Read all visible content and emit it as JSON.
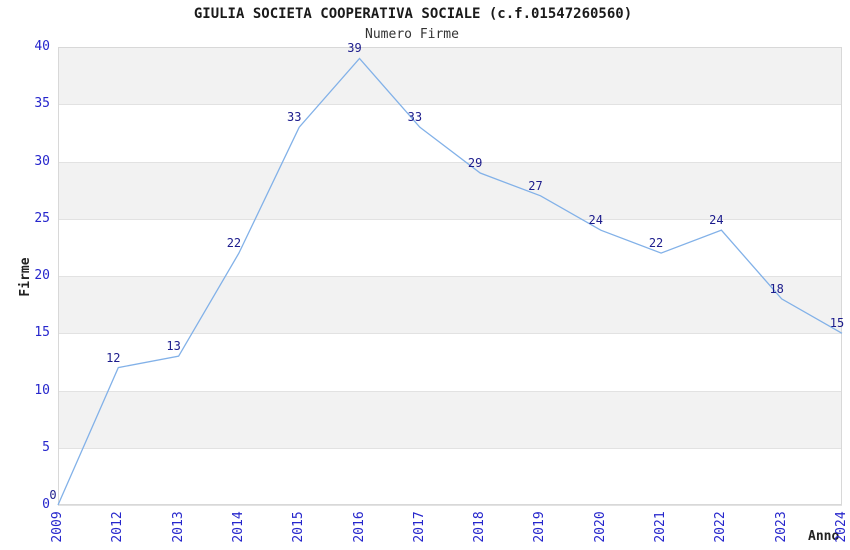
{
  "chart_data": {
    "type": "line",
    "title": "GIULIA SOCIETA COOPERATIVA SOCIALE (c.f.01547260560)",
    "subtitle": "Numero Firme",
    "xlabel": "Anno",
    "ylabel": "Firme",
    "categories": [
      "2009",
      "2012",
      "2013",
      "2014",
      "2015",
      "2016",
      "2017",
      "2018",
      "2019",
      "2020",
      "2021",
      "2022",
      "2023",
      "2024"
    ],
    "values": [
      0,
      12,
      13,
      22,
      33,
      39,
      33,
      29,
      27,
      24,
      22,
      24,
      18,
      15
    ],
    "ylim": [
      0,
      40
    ],
    "yticks": [
      0,
      5,
      10,
      15,
      20,
      25,
      30,
      35,
      40
    ],
    "grid": true,
    "legend": "none",
    "point_labels_shown": true,
    "colors": {
      "line": "#82b1e8",
      "data_label": "#1c1c8c",
      "tick_label": "#2626cc",
      "band": "#f2f2f2",
      "gridline": "#e2e2e2",
      "plot_border": "#d8d8d8",
      "title": "#1a1a1a",
      "background": "#ffffff"
    }
  }
}
